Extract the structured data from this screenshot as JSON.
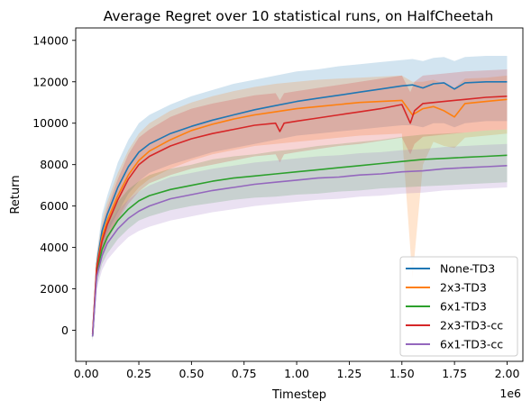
{
  "chart_data": {
    "type": "line",
    "title": "Average Regret over 10 statistical runs, on HalfCheetah",
    "xlabel": "Timestep",
    "ylabel": "Return",
    "x_offset_label": "1e6",
    "x_scale": 1000000,
    "xlim": [
      -50000,
      2075000
    ],
    "ylim": [
      -1500,
      14600
    ],
    "x_ticks": [
      0.0,
      0.25,
      0.5,
      0.75,
      1.0,
      1.25,
      1.5,
      1.75,
      2.0
    ],
    "x_tick_labels": [
      "0.00",
      "0.25",
      "0.50",
      "0.75",
      "1.00",
      "1.25",
      "1.50",
      "1.75",
      "2.00"
    ],
    "y_ticks": [
      0,
      2000,
      4000,
      6000,
      8000,
      10000,
      12000,
      14000
    ],
    "y_tick_labels": [
      "0",
      "2000",
      "4000",
      "6000",
      "8000",
      "10000",
      "12000",
      "14000"
    ],
    "grid": false,
    "legend_position": "bottom-right",
    "shaded_band": "variability across runs",
    "series": [
      {
        "name": "None-TD3",
        "color": "#1f77b4",
        "x": [
          30000,
          50000,
          75000,
          100000,
          150000,
          200000,
          250000,
          300000,
          400000,
          500000,
          600000,
          700000,
          800000,
          900000,
          1000000,
          1100000,
          1200000,
          1300000,
          1400000,
          1500000,
          1550000,
          1600000,
          1650000,
          1700000,
          1750000,
          1800000,
          1900000,
          2000000
        ],
        "y": [
          -300,
          3200,
          4800,
          5600,
          6900,
          7900,
          8600,
          9000,
          9500,
          9850,
          10150,
          10400,
          10650,
          10850,
          11050,
          11200,
          11350,
          11500,
          11650,
          11800,
          11850,
          11700,
          11900,
          11950,
          11650,
          11950,
          12000,
          12000
        ],
        "band_low": [
          -500,
          2600,
          4000,
          4700,
          5700,
          6600,
          7200,
          7600,
          8000,
          8300,
          8600,
          8800,
          9000,
          9200,
          9400,
          9500,
          9600,
          9700,
          9800,
          9900,
          9900,
          9800,
          10000,
          10000,
          9800,
          10000,
          10100,
          10100
        ],
        "band_high": [
          0,
          3700,
          5600,
          6500,
          8100,
          9200,
          10000,
          10400,
          10900,
          11300,
          11600,
          11900,
          12100,
          12300,
          12500,
          12600,
          12750,
          12850,
          12950,
          13050,
          13100,
          13000,
          13150,
          13200,
          13000,
          13200,
          13250,
          13250
        ]
      },
      {
        "name": "2x3-TD3",
        "color": "#ff7f0e",
        "x": [
          30000,
          50000,
          75000,
          100000,
          150000,
          200000,
          250000,
          300000,
          400000,
          500000,
          600000,
          700000,
          800000,
          900000,
          1000000,
          1100000,
          1200000,
          1300000,
          1400000,
          1500000,
          1550000,
          1600000,
          1650000,
          1700000,
          1750000,
          1800000,
          1900000,
          2000000
        ],
        "y": [
          -200,
          3100,
          4500,
          5300,
          6500,
          7500,
          8200,
          8650,
          9200,
          9650,
          9950,
          10200,
          10400,
          10550,
          10700,
          10800,
          10900,
          11000,
          11050,
          11100,
          10400,
          10700,
          10800,
          10600,
          10300,
          10950,
          11050,
          11150
        ],
        "band_low": [
          -400,
          2500,
          3700,
          4400,
          5400,
          6300,
          6900,
          7300,
          7800,
          8200,
          8500,
          8700,
          8900,
          9000,
          9100,
          9200,
          9300,
          9400,
          9450,
          9500,
          2500,
          8000,
          9100,
          8900,
          8800,
          9300,
          9400,
          9500
        ],
        "band_high": [
          0,
          3600,
          5300,
          6200,
          7600,
          8700,
          9500,
          10000,
          10600,
          11000,
          11300,
          11550,
          11750,
          11900,
          12000,
          12100,
          12150,
          12200,
          12250,
          12300,
          12000,
          12000,
          12100,
          11900,
          11700,
          12150,
          12200,
          12300
        ]
      },
      {
        "name": "6x1-TD3",
        "color": "#2ca02c",
        "x": [
          30000,
          50000,
          75000,
          100000,
          150000,
          200000,
          250000,
          300000,
          400000,
          500000,
          600000,
          700000,
          800000,
          900000,
          1000000,
          1100000,
          1200000,
          1300000,
          1400000,
          1500000,
          1600000,
          1700000,
          1800000,
          1900000,
          2000000
        ],
        "y": [
          -300,
          2800,
          3900,
          4500,
          5300,
          5850,
          6250,
          6500,
          6800,
          7000,
          7200,
          7350,
          7450,
          7550,
          7650,
          7750,
          7850,
          7950,
          8050,
          8150,
          8250,
          8300,
          8350,
          8400,
          8450
        ],
        "band_low": [
          -500,
          2200,
          3200,
          3700,
          4400,
          4900,
          5300,
          5500,
          5800,
          6000,
          6150,
          6300,
          6400,
          6450,
          6550,
          6600,
          6700,
          6750,
          6850,
          6900,
          6950,
          7000,
          7050,
          7100,
          7150
        ],
        "band_high": [
          0,
          3300,
          4600,
          5300,
          6200,
          6800,
          7200,
          7500,
          7800,
          8000,
          8250,
          8400,
          8500,
          8650,
          8750,
          8900,
          9000,
          9100,
          9200,
          9350,
          9450,
          9500,
          9550,
          9650,
          9700
        ]
      },
      {
        "name": "2x3-TD3-cc",
        "color": "#d62728",
        "x": [
          30000,
          50000,
          75000,
          100000,
          150000,
          200000,
          250000,
          300000,
          400000,
          500000,
          600000,
          700000,
          800000,
          900000,
          920000,
          940000,
          1000000,
          1100000,
          1200000,
          1300000,
          1400000,
          1500000,
          1540000,
          1560000,
          1600000,
          1700000,
          1800000,
          1900000,
          2000000
        ],
        "y": [
          -200,
          3000,
          4300,
          5100,
          6300,
          7300,
          8000,
          8400,
          8900,
          9250,
          9500,
          9700,
          9900,
          10000,
          9600,
          10000,
          10100,
          10250,
          10400,
          10550,
          10700,
          10900,
          10000,
          10600,
          10950,
          11050,
          11150,
          11250,
          11300
        ],
        "band_low": [
          -400,
          2400,
          3600,
          4300,
          5300,
          6100,
          6700,
          7100,
          7500,
          7800,
          8000,
          8200,
          8400,
          8500,
          8100,
          8500,
          8600,
          8750,
          8900,
          9000,
          9150,
          9300,
          8500,
          9000,
          9350,
          9450,
          9550,
          9650,
          9700
        ],
        "band_high": [
          0,
          3500,
          5000,
          5900,
          7300,
          8500,
          9300,
          9700,
          10300,
          10700,
          10950,
          11150,
          11350,
          11450,
          11100,
          11450,
          11550,
          11700,
          11850,
          12000,
          12150,
          12300,
          11500,
          12000,
          12300,
          12400,
          12500,
          12550,
          12600
        ]
      },
      {
        "name": "6x1-TD3-cc",
        "color": "#9467bd",
        "x": [
          30000,
          50000,
          75000,
          100000,
          150000,
          200000,
          250000,
          300000,
          400000,
          500000,
          600000,
          700000,
          800000,
          900000,
          1000000,
          1100000,
          1200000,
          1300000,
          1400000,
          1500000,
          1600000,
          1700000,
          1800000,
          1900000,
          2000000
        ],
        "y": [
          -300,
          2600,
          3600,
          4200,
          4900,
          5400,
          5750,
          6000,
          6350,
          6550,
          6750,
          6900,
          7050,
          7150,
          7250,
          7350,
          7400,
          7500,
          7550,
          7650,
          7700,
          7800,
          7850,
          7900,
          7950
        ],
        "band_low": [
          -500,
          2000,
          2900,
          3400,
          4000,
          4500,
          4800,
          5000,
          5300,
          5500,
          5700,
          5850,
          6000,
          6100,
          6200,
          6300,
          6350,
          6450,
          6500,
          6600,
          6650,
          6750,
          6800,
          6850,
          6900
        ],
        "band_high": [
          0,
          3100,
          4300,
          5000,
          5800,
          6300,
          6700,
          7000,
          7400,
          7600,
          7800,
          7950,
          8100,
          8200,
          8300,
          8400,
          8450,
          8550,
          8600,
          8700,
          8750,
          8850,
          8900,
          8950,
          9000
        ]
      }
    ]
  }
}
